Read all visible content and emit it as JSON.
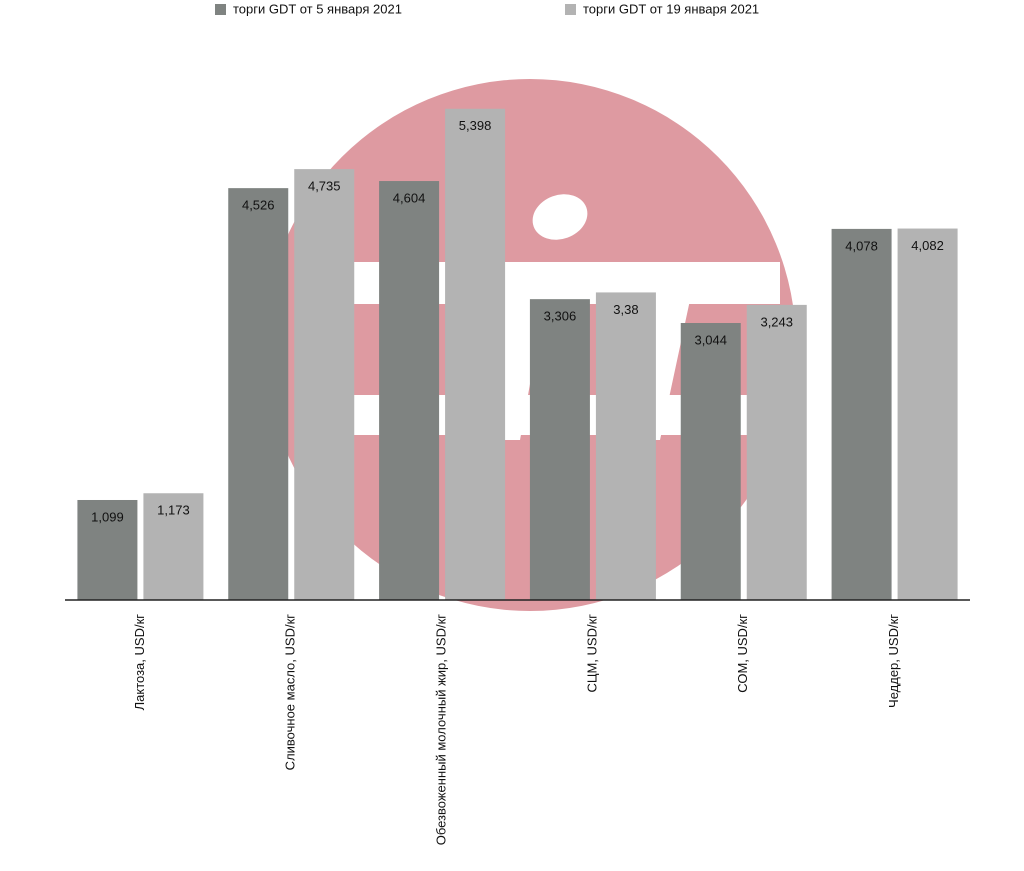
{
  "chart_data": {
    "type": "bar",
    "categories": [
      "Лактоза,  USD/кг",
      "Сливочное масло, USD/кг",
      "Обезвоженный молочный жир, USD/кг",
      "СЦМ, USD/кг",
      "СОМ, USD/кг",
      "Чеддер, USD/кг"
    ],
    "series": [
      {
        "name": "торги GDT от 5 января 2021",
        "color": "#7f8381",
        "values": [
          1.099,
          4.526,
          4.604,
          3.306,
          3.044,
          4.078
        ],
        "value_labels": [
          "1,099",
          "4,526",
          "4,604",
          "3,306",
          "3,044",
          "4,078"
        ]
      },
      {
        "name": "торги GDT от 19 января 2021",
        "color": "#b3b3b3",
        "values": [
          1.173,
          4.735,
          5.398,
          3.38,
          3.243,
          4.082
        ],
        "value_labels": [
          "1,173",
          "4,735",
          "5,398",
          "3,38",
          "3,243",
          "4,082"
        ]
      }
    ],
    "ylim": [
      0,
      6
    ],
    "legend": "top"
  }
}
